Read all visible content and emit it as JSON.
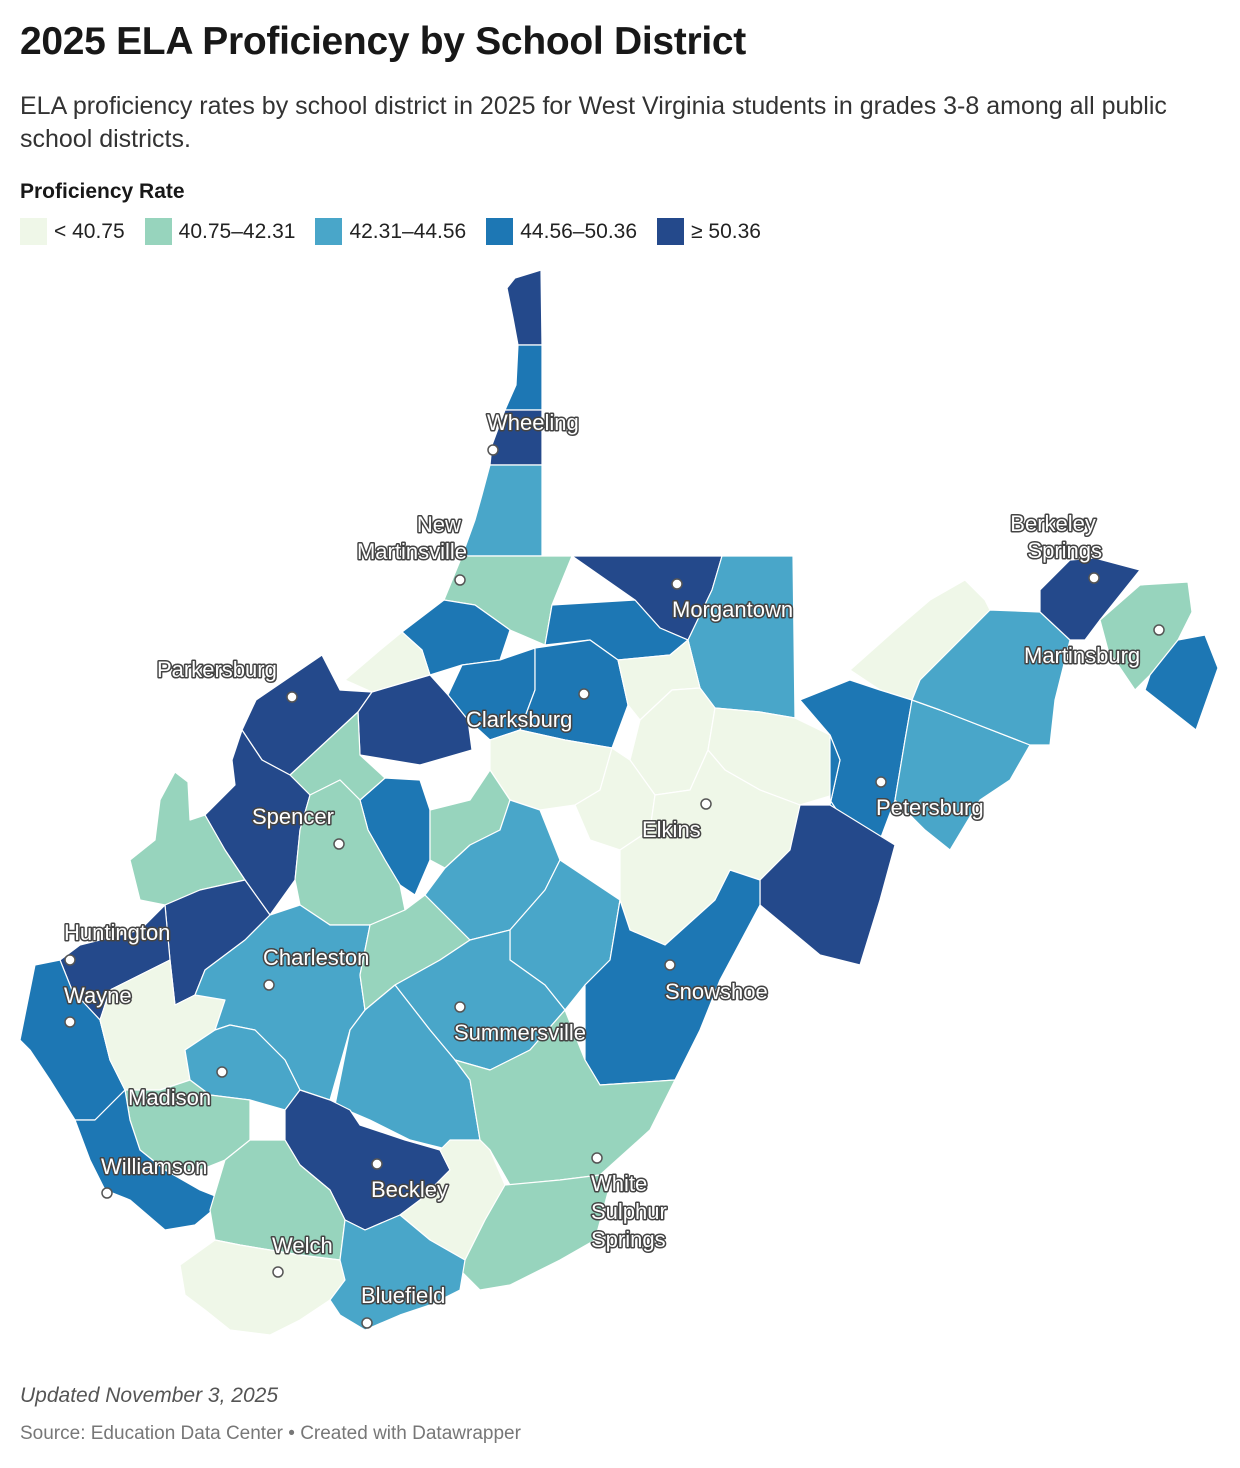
{
  "header": {
    "title": "2025 ELA Proficiency by School District",
    "subtitle": "ELA proficiency rates by school district in 2025 for West Virginia students in grades 3-8 among all public school districts."
  },
  "legend": {
    "title": "Proficiency Rate",
    "items": [
      {
        "label": "< 40.75",
        "color": "#eff7e8"
      },
      {
        "label": "40.75–42.31",
        "color": "#97d4bd"
      },
      {
        "label": "42.31–44.56",
        "color": "#49a6c9"
      },
      {
        "label": "44.56–50.36",
        "color": "#1d77b4"
      },
      {
        "label": "≥ 50.36",
        "color": "#24498b"
      }
    ]
  },
  "map": {
    "state": "West Virginia",
    "cities": [
      "Wheeling",
      "New Martinsville",
      "Morgantown",
      "Berkeley Springs",
      "Martinsburg",
      "Parkersburg",
      "Clarksburg",
      "Spencer",
      "Elkins",
      "Petersburg",
      "Huntington",
      "Charleston",
      "Wayne",
      "Snowshoe",
      "Summersville",
      "Madison",
      "Williamson",
      "Beckley",
      "White Sulphur Springs",
      "Welch",
      "Bluefield"
    ]
  },
  "footer": {
    "updated": "Updated November 3, 2025",
    "source": "Source: Education Data Center • Created with Datawrapper"
  }
}
